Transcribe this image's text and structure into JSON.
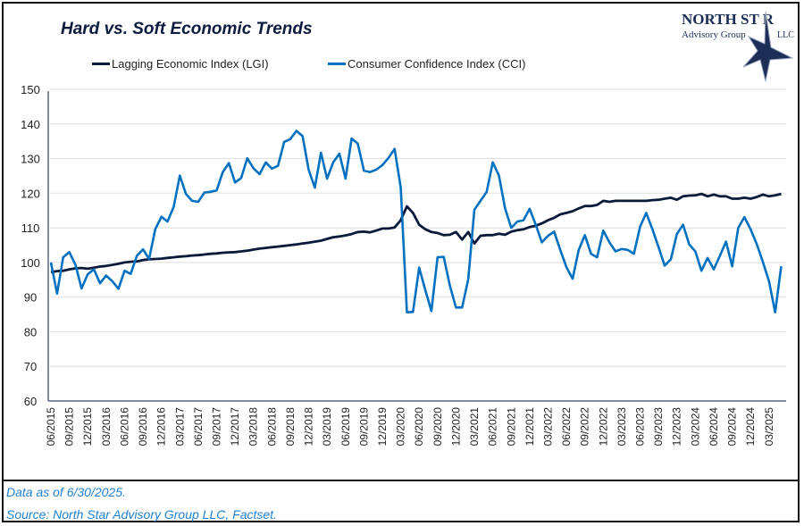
{
  "chart_data": {
    "type": "line",
    "title": "Hard vs. Soft Economic Trends",
    "xlabel": "",
    "ylabel": "",
    "ylim": [
      60,
      150
    ],
    "yticks": [
      60,
      70,
      80,
      90,
      100,
      110,
      120,
      130,
      140,
      150
    ],
    "grid": true,
    "legend": "top",
    "xtick_labels": [
      "06/2015",
      "09/2015",
      "12/2015",
      "03/2016",
      "06/2016",
      "09/2016",
      "12/2016",
      "03/2017",
      "06/2017",
      "09/2017",
      "12/2017",
      "03/2018",
      "06/2018",
      "09/2018",
      "12/2018",
      "03/2019",
      "06/2019",
      "09/2019",
      "12/2019",
      "03/2020",
      "06/2020",
      "09/2020",
      "12/2020",
      "03/2021",
      "06/2021",
      "09/2021",
      "12/2021",
      "03/2022",
      "06/2022",
      "09/2022",
      "12/2022",
      "03/2023",
      "06/2023",
      "09/2023",
      "12/2023",
      "03/2024",
      "06/2024",
      "09/2024",
      "12/2024",
      "03/2025"
    ],
    "x": [
      "06/2015",
      "07/2015",
      "08/2015",
      "09/2015",
      "10/2015",
      "11/2015",
      "12/2015",
      "01/2016",
      "02/2016",
      "03/2016",
      "04/2016",
      "05/2016",
      "06/2016",
      "07/2016",
      "08/2016",
      "09/2016",
      "10/2016",
      "11/2016",
      "12/2016",
      "01/2017",
      "02/2017",
      "03/2017",
      "04/2017",
      "05/2017",
      "06/2017",
      "07/2017",
      "08/2017",
      "09/2017",
      "10/2017",
      "11/2017",
      "12/2017",
      "01/2018",
      "02/2018",
      "03/2018",
      "04/2018",
      "05/2018",
      "06/2018",
      "07/2018",
      "08/2018",
      "09/2018",
      "10/2018",
      "11/2018",
      "12/2018",
      "01/2019",
      "02/2019",
      "03/2019",
      "04/2019",
      "05/2019",
      "06/2019",
      "07/2019",
      "08/2019",
      "09/2019",
      "10/2019",
      "11/2019",
      "12/2019",
      "01/2020",
      "02/2020",
      "03/2020",
      "04/2020",
      "05/2020",
      "06/2020",
      "07/2020",
      "08/2020",
      "09/2020",
      "10/2020",
      "11/2020",
      "12/2020",
      "01/2021",
      "02/2021",
      "03/2021",
      "04/2021",
      "05/2021",
      "06/2021",
      "07/2021",
      "08/2021",
      "09/2021",
      "10/2021",
      "11/2021",
      "12/2021",
      "01/2022",
      "02/2022",
      "03/2022",
      "04/2022",
      "05/2022",
      "06/2022",
      "07/2022",
      "08/2022",
      "09/2022",
      "10/2022",
      "11/2022",
      "12/2022",
      "01/2023",
      "02/2023",
      "03/2023",
      "04/2023",
      "05/2023",
      "06/2023",
      "07/2023",
      "08/2023",
      "09/2023",
      "10/2023",
      "11/2023",
      "12/2023",
      "01/2024",
      "02/2024",
      "03/2024",
      "04/2024",
      "05/2024",
      "06/2024",
      "07/2024",
      "08/2024",
      "09/2024",
      "10/2024",
      "11/2024",
      "12/2024",
      "01/2025",
      "02/2025",
      "03/2025",
      "04/2025",
      "05/2025"
    ],
    "series": [
      {
        "name": "Lagging Economic Index (LGI)",
        "color": "#0b1a3a",
        "values": [
          97.2,
          97.5,
          97.6,
          98.0,
          98.3,
          98.4,
          98.2,
          98.5,
          98.8,
          99.0,
          99.3,
          99.6,
          100.0,
          100.2,
          100.3,
          100.7,
          100.9,
          101.0,
          101.1,
          101.3,
          101.5,
          101.7,
          101.8,
          102.0,
          102.1,
          102.3,
          102.5,
          102.6,
          102.8,
          102.9,
          103.0,
          103.2,
          103.4,
          103.7,
          104.0,
          104.2,
          104.4,
          104.6,
          104.8,
          105.0,
          105.2,
          105.5,
          105.7,
          106.0,
          106.3,
          106.8,
          107.3,
          107.5,
          107.8,
          108.2,
          108.8,
          108.9,
          108.7,
          109.2,
          109.8,
          109.8,
          110.1,
          112.2,
          116.2,
          114.3,
          110.9,
          109.6,
          108.8,
          108.5,
          107.9,
          108.0,
          108.8,
          106.6,
          108.8,
          105.5,
          107.7,
          107.9,
          107.9,
          108.3,
          108.0,
          108.9,
          109.3,
          109.6,
          110.2,
          110.6,
          111.3,
          112.2,
          112.9,
          113.9,
          114.3,
          114.8,
          115.6,
          116.3,
          116.3,
          116.6,
          117.8,
          117.5,
          117.8,
          117.8,
          117.8,
          117.8,
          117.8,
          117.8,
          118.0,
          118.1,
          118.4,
          118.7,
          118.1,
          119.1,
          119.3,
          119.4,
          119.8,
          119.1,
          119.6,
          119.1,
          119.1,
          118.4,
          118.4,
          118.7,
          118.4,
          118.9,
          119.6,
          119.1,
          119.4,
          119.8
        ]
      },
      {
        "name": "Consumer Confidence Index (CCI)",
        "color": "#0070c0",
        "values": [
          100.0,
          91.0,
          101.5,
          103.0,
          99.3,
          92.5,
          96.6,
          98.0,
          94.0,
          96.2,
          94.6,
          92.4,
          97.6,
          96.7,
          101.9,
          103.8,
          101.0,
          109.6,
          113.2,
          111.8,
          116.0,
          125.1,
          119.8,
          117.8,
          117.5,
          120.2,
          120.4,
          120.8,
          126.1,
          128.7,
          123.1,
          124.4,
          130.1,
          127.2,
          125.5,
          128.9,
          127.1,
          127.9,
          134.8,
          135.6,
          138.0,
          136.5,
          126.8,
          121.6,
          131.7,
          124.2,
          128.9,
          131.4,
          124.2,
          135.8,
          134.3,
          126.5,
          126.1,
          126.8,
          128.1,
          130.2,
          132.8,
          121.6,
          85.6,
          85.7,
          98.5,
          92.0,
          86.0,
          101.5,
          101.6,
          93.3,
          87.0,
          87.0,
          95.2,
          115.2,
          117.8,
          120.4,
          128.9,
          125.1,
          115.6,
          110.0,
          111.8,
          112.2,
          115.5,
          110.9,
          105.8,
          107.7,
          108.9,
          103.6,
          98.6,
          95.3,
          103.6,
          107.9,
          102.5,
          101.5,
          109.2,
          105.8,
          103.2,
          103.9,
          103.6,
          102.5,
          110.3,
          114.3,
          109.6,
          104.5,
          99.1,
          100.9,
          108.2,
          110.9,
          105.2,
          103.2,
          97.6,
          101.3,
          98.0,
          101.9,
          106.0,
          98.9,
          110.0,
          113.1,
          109.6,
          105.3,
          100.2,
          94.6,
          85.6,
          98.9
        ]
      }
    ]
  },
  "footer": {
    "note": "Data as of 6/30/2025.",
    "source": "Source: North Star Advisory Group LLC, Factset."
  },
  "logo": {
    "line1": "North Star",
    "line2": "Advisory Group",
    "line3": "LLC"
  }
}
